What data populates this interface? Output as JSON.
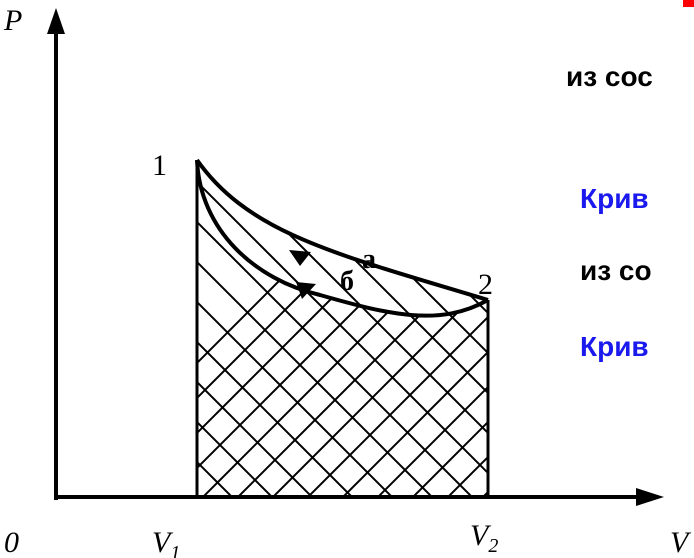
{
  "diagram": {
    "axes": {
      "y_label": "P",
      "x_label": "V",
      "origin_label": "0"
    },
    "ticks": {
      "v1_main": "V",
      "v1_sub": "1",
      "v2_main": "V",
      "v2_sub": "2"
    },
    "points": {
      "state_1": "1",
      "state_2": "2"
    },
    "curves": {
      "upper_label": "а",
      "lower_label": "б"
    },
    "colors": {
      "axis": "#000000",
      "curve": "#000000",
      "hatch": "#000000",
      "text_black": "#000000",
      "text_blue": "#1a1aee",
      "text_red": "#ff0000"
    }
  },
  "side_text": {
    "line1": "из сос",
    "line2": "Крив",
    "line3": "из со",
    "line4": "Крив"
  }
}
